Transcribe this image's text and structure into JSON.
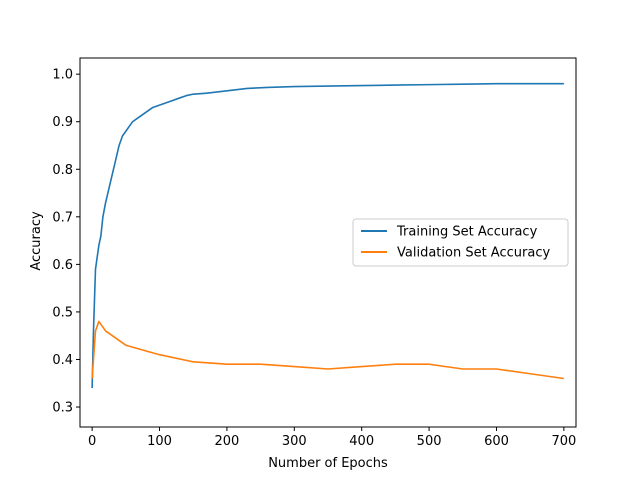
{
  "chart_data": {
    "type": "line",
    "title": "",
    "xlabel": "Number of Epochs",
    "ylabel": "Accuracy",
    "xlim": [
      -18,
      718
    ],
    "ylim": [
      0.258,
      1.034
    ],
    "xticks": [
      0,
      100,
      200,
      300,
      400,
      500,
      600,
      700
    ],
    "yticks": [
      0.3,
      0.4,
      0.5,
      0.6,
      0.7,
      0.8,
      0.9,
      1.0
    ],
    "xtick_labels": [
      "0",
      "100",
      "200",
      "300",
      "400",
      "500",
      "600",
      "700"
    ],
    "ytick_labels": [
      "0.3",
      "0.4",
      "0.5",
      "0.6",
      "0.7",
      "0.8",
      "0.9",
      "1.0"
    ],
    "grid": false,
    "legend_position": "center-right",
    "series": [
      {
        "name": "Training Set Accuracy",
        "color": "#1f77b4",
        "x": [
          0,
          2,
          5,
          8,
          10,
          13,
          16,
          20,
          25,
          30,
          35,
          40,
          45,
          50,
          60,
          70,
          80,
          90,
          100,
          110,
          120,
          130,
          140,
          150,
          170,
          200,
          230,
          260,
          300,
          350,
          400,
          450,
          500,
          550,
          600,
          650,
          700
        ],
        "y": [
          0.34,
          0.46,
          0.59,
          0.62,
          0.64,
          0.66,
          0.7,
          0.73,
          0.76,
          0.79,
          0.82,
          0.85,
          0.87,
          0.88,
          0.9,
          0.91,
          0.92,
          0.93,
          0.935,
          0.94,
          0.945,
          0.95,
          0.955,
          0.958,
          0.96,
          0.965,
          0.97,
          0.972,
          0.974,
          0.975,
          0.976,
          0.977,
          0.978,
          0.979,
          0.98,
          0.98,
          0.98
        ]
      },
      {
        "name": "Validation Set Accuracy",
        "color": "#ff7f0e",
        "x": [
          0,
          5,
          10,
          20,
          30,
          50,
          75,
          100,
          150,
          200,
          250,
          300,
          350,
          400,
          450,
          500,
          550,
          600,
          650,
          700
        ],
        "y": [
          0.36,
          0.46,
          0.48,
          0.46,
          0.45,
          0.43,
          0.42,
          0.41,
          0.395,
          0.39,
          0.39,
          0.385,
          0.38,
          0.385,
          0.39,
          0.39,
          0.38,
          0.38,
          0.37,
          0.36
        ]
      }
    ]
  }
}
